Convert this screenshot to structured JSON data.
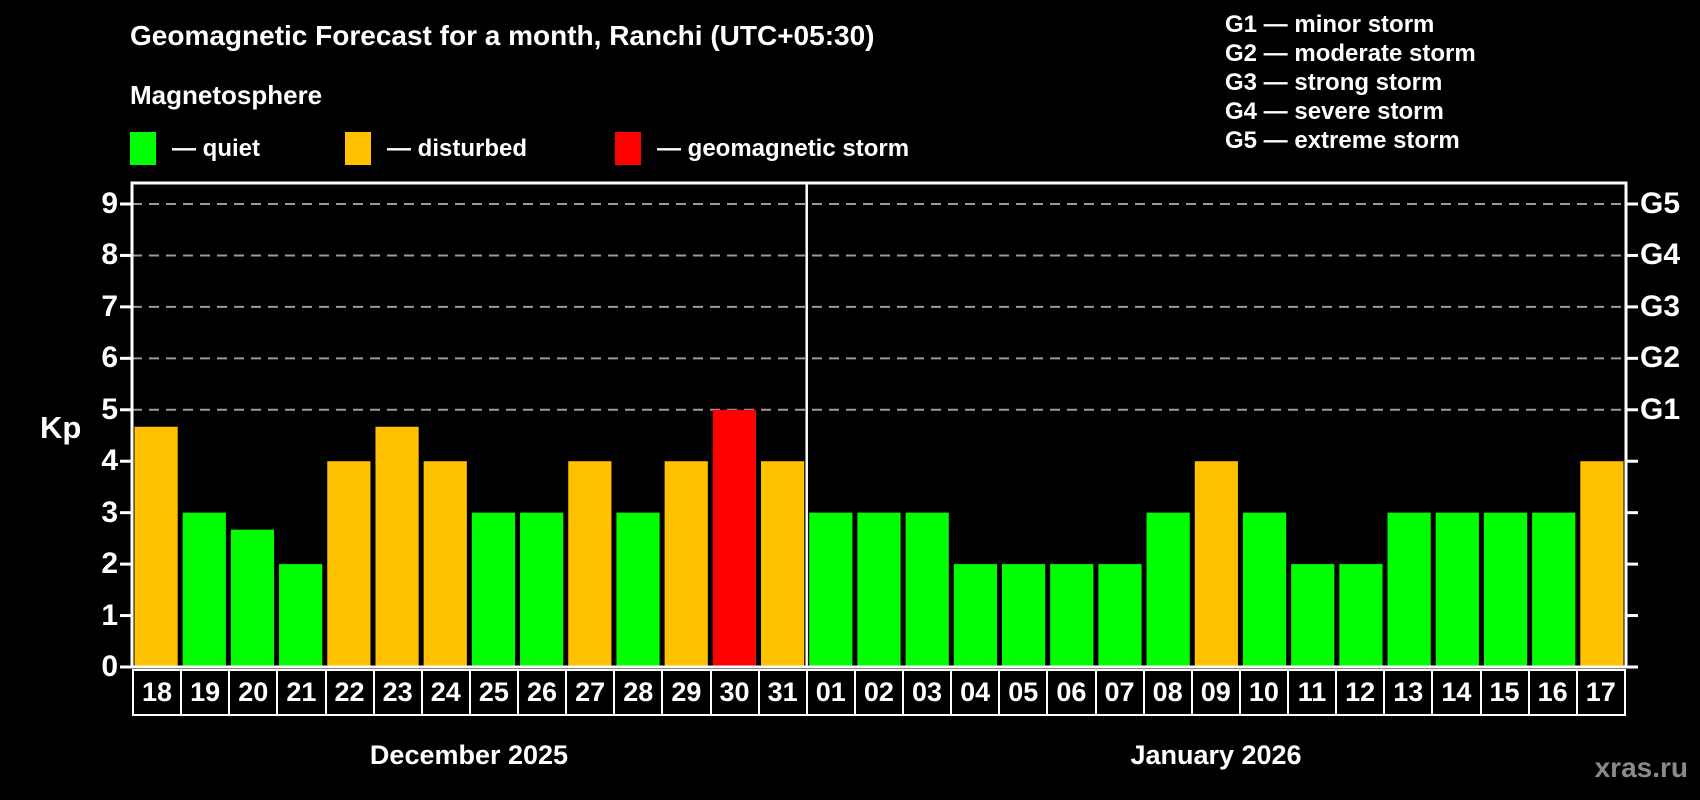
{
  "header": {
    "subtitle": "Magnetosphere",
    "legend": [
      {
        "key": "quiet",
        "label": "— quiet"
      },
      {
        "key": "disturbed",
        "label": "— disturbed"
      },
      {
        "key": "storm",
        "label": "— geomagnetic storm"
      }
    ]
  },
  "storm_scale": [
    {
      "code": "G1",
      "kp": 5,
      "desc": "minor storm"
    },
    {
      "code": "G2",
      "kp": 6,
      "desc": "moderate storm"
    },
    {
      "code": "G3",
      "kp": 7,
      "desc": "strong storm"
    },
    {
      "code": "G4",
      "kp": 8,
      "desc": "severe storm"
    },
    {
      "code": "G5",
      "kp": 9,
      "desc": "extreme storm"
    }
  ],
  "colors": {
    "quiet": "#00ff00",
    "disturbed": "#ffc100",
    "storm": "#ff0000"
  },
  "chart_data": {
    "type": "bar",
    "title": "Geomagnetic Forecast for a month, Ranchi (UTC+05:30)",
    "ylabel": "Kp",
    "ylim": [
      0,
      9
    ],
    "yticks": [
      0,
      1,
      2,
      3,
      4,
      5,
      6,
      7,
      8,
      9
    ],
    "grid": "dashed horizontal at storm levels G1–G5 (Kp 5–9)",
    "months": [
      {
        "label": "December 2025",
        "days": [
          {
            "day": "18",
            "kp": 4.67,
            "status": "disturbed"
          },
          {
            "day": "19",
            "kp": 3,
            "status": "quiet"
          },
          {
            "day": "20",
            "kp": 2.67,
            "status": "quiet"
          },
          {
            "day": "21",
            "kp": 2,
            "status": "quiet"
          },
          {
            "day": "22",
            "kp": 4,
            "status": "disturbed"
          },
          {
            "day": "23",
            "kp": 4.67,
            "status": "disturbed"
          },
          {
            "day": "24",
            "kp": 4,
            "status": "disturbed"
          },
          {
            "day": "25",
            "kp": 3,
            "status": "quiet"
          },
          {
            "day": "26",
            "kp": 3,
            "status": "quiet"
          },
          {
            "day": "27",
            "kp": 4,
            "status": "disturbed"
          },
          {
            "day": "28",
            "kp": 3,
            "status": "quiet"
          },
          {
            "day": "29",
            "kp": 4,
            "status": "disturbed"
          },
          {
            "day": "30",
            "kp": 5,
            "status": "storm"
          },
          {
            "day": "31",
            "kp": 4,
            "status": "disturbed"
          }
        ]
      },
      {
        "label": "January 2026",
        "days": [
          {
            "day": "01",
            "kp": 3,
            "status": "quiet"
          },
          {
            "day": "02",
            "kp": 3,
            "status": "quiet"
          },
          {
            "day": "03",
            "kp": 3,
            "status": "quiet"
          },
          {
            "day": "04",
            "kp": 2,
            "status": "quiet"
          },
          {
            "day": "05",
            "kp": 2,
            "status": "quiet"
          },
          {
            "day": "06",
            "kp": 2,
            "status": "quiet"
          },
          {
            "day": "07",
            "kp": 2,
            "status": "quiet"
          },
          {
            "day": "08",
            "kp": 3,
            "status": "quiet"
          },
          {
            "day": "09",
            "kp": 4,
            "status": "disturbed"
          },
          {
            "day": "10",
            "kp": 3,
            "status": "quiet"
          },
          {
            "day": "11",
            "kp": 2,
            "status": "quiet"
          },
          {
            "day": "12",
            "kp": 2,
            "status": "quiet"
          },
          {
            "day": "13",
            "kp": 3,
            "status": "quiet"
          },
          {
            "day": "14",
            "kp": 3,
            "status": "quiet"
          },
          {
            "day": "15",
            "kp": 3,
            "status": "quiet"
          },
          {
            "day": "16",
            "kp": 3,
            "status": "quiet"
          },
          {
            "day": "17",
            "kp": 4,
            "status": "disturbed"
          }
        ]
      }
    ]
  },
  "watermark": "xras.ru"
}
